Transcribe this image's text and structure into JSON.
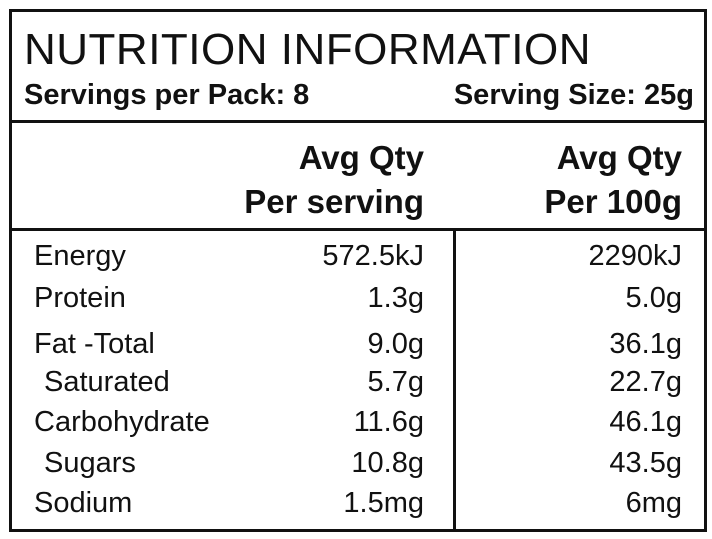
{
  "title": "NUTRITION INFORMATION",
  "servings_per_pack": "Servings per Pack: 8",
  "serving_size": "Serving Size: 25g",
  "columns": {
    "per_serving_line1": "Avg Qty",
    "per_serving_line2": "Per serving",
    "per_100g_line1": "Avg Qty",
    "per_100g_line2": "Per 100g"
  },
  "rows": [
    {
      "label": "Energy",
      "per_serving": "572.5kJ",
      "per_100g": "2290kJ"
    },
    {
      "label": "Protein",
      "per_serving": "1.3g",
      "per_100g": "5.0g"
    },
    {
      "label": "Fat -Total",
      "per_serving": "9.0g",
      "per_100g": "36.1g"
    },
    {
      "label": "Saturated",
      "per_serving": "5.7g",
      "per_100g": "22.7g"
    },
    {
      "label": "Carbohydrate",
      "per_serving": "11.6g",
      "per_100g": "46.1g"
    },
    {
      "label": "Sugars",
      "per_serving": "10.8g",
      "per_100g": "43.5g"
    },
    {
      "label": "Sodium",
      "per_serving": "1.5mg",
      "per_100g": "6mg"
    }
  ]
}
